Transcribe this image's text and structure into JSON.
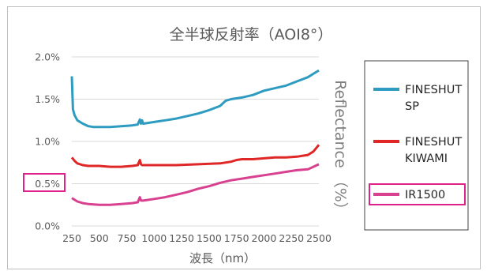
{
  "chart_data": {
    "type": "line",
    "title": "全半球反射率（AOI8°）",
    "xlabel": "波長（nm）",
    "ylabel": "Reflectance （%）",
    "xlim": [
      250,
      2500
    ],
    "ylim": [
      0,
      2.0
    ],
    "x_ticks": [
      "250",
      "500",
      "750",
      "1000",
      "1250",
      "1500",
      "1750",
      "2000",
      "2250",
      "2500"
    ],
    "y_ticks": [
      "0.0%",
      "0.5%",
      "1.0%",
      "1.5%",
      "2.0%"
    ],
    "grid": true,
    "legend_position": "right",
    "highlight": {
      "y_tick": "0.5%",
      "legend_entry": "IR1500",
      "color": "#e0218a"
    },
    "series": [
      {
        "name": "FINESHUT SP",
        "legend_lines": [
          "FINESHUT",
          "SP"
        ],
        "color": "#2e9bc0",
        "x": [
          250,
          260,
          275,
          300,
          350,
          400,
          450,
          500,
          600,
          700,
          800,
          850,
          870,
          880,
          890,
          900,
          950,
          1000,
          1100,
          1200,
          1300,
          1400,
          1500,
          1600,
          1650,
          1700,
          1800,
          1900,
          2000,
          2100,
          2200,
          2300,
          2400,
          2450,
          2500
        ],
        "values": [
          1.77,
          1.38,
          1.31,
          1.25,
          1.21,
          1.18,
          1.17,
          1.17,
          1.17,
          1.18,
          1.19,
          1.2,
          1.26,
          1.21,
          1.25,
          1.21,
          1.22,
          1.23,
          1.25,
          1.27,
          1.3,
          1.33,
          1.37,
          1.42,
          1.48,
          1.5,
          1.52,
          1.55,
          1.6,
          1.63,
          1.66,
          1.71,
          1.76,
          1.8,
          1.84
        ]
      },
      {
        "name": "FINESHUT KIWAMI",
        "legend_lines": [
          "FINESHUT",
          "KIWAMI"
        ],
        "color": "#e02727",
        "x": [
          250,
          275,
          300,
          350,
          400,
          500,
          600,
          700,
          800,
          850,
          870,
          880,
          890,
          900,
          1000,
          1200,
          1400,
          1600,
          1700,
          1750,
          1800,
          1900,
          2000,
          2100,
          2200,
          2300,
          2400,
          2450,
          2500
        ],
        "values": [
          0.81,
          0.77,
          0.74,
          0.72,
          0.71,
          0.71,
          0.7,
          0.7,
          0.71,
          0.72,
          0.78,
          0.73,
          0.72,
          0.72,
          0.72,
          0.72,
          0.73,
          0.74,
          0.76,
          0.78,
          0.79,
          0.79,
          0.8,
          0.81,
          0.81,
          0.82,
          0.84,
          0.88,
          0.96
        ]
      },
      {
        "name": "IR1500",
        "legend_lines": [
          "IR1500"
        ],
        "color": "#d8418f",
        "x": [
          250,
          275,
          300,
          350,
          400,
          500,
          600,
          700,
          800,
          850,
          870,
          880,
          890,
          900,
          1000,
          1100,
          1200,
          1300,
          1400,
          1500,
          1600,
          1700,
          1800,
          1900,
          2000,
          2100,
          2200,
          2300,
          2400,
          2450,
          2500
        ],
        "values": [
          0.33,
          0.31,
          0.29,
          0.27,
          0.26,
          0.25,
          0.25,
          0.26,
          0.27,
          0.28,
          0.34,
          0.3,
          0.3,
          0.3,
          0.32,
          0.34,
          0.37,
          0.4,
          0.44,
          0.47,
          0.51,
          0.54,
          0.56,
          0.58,
          0.6,
          0.62,
          0.64,
          0.66,
          0.67,
          0.7,
          0.73
        ]
      }
    ]
  }
}
